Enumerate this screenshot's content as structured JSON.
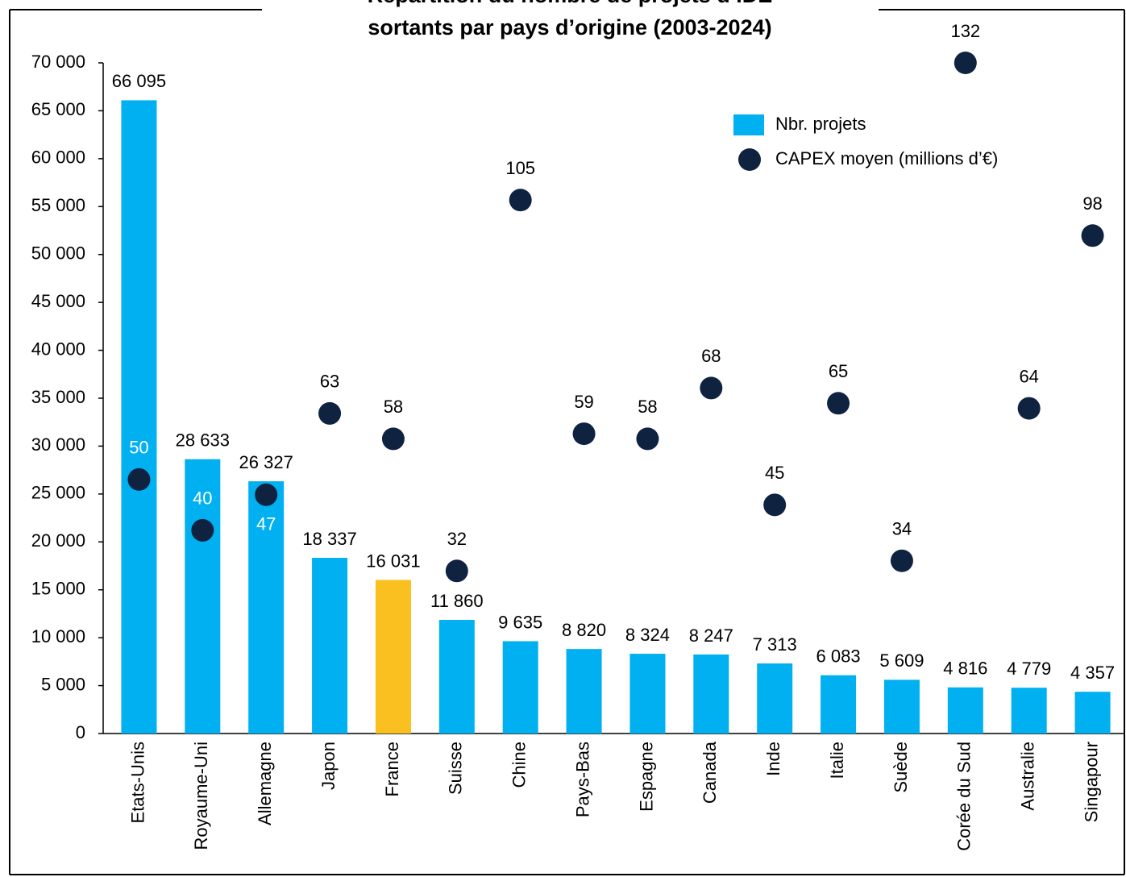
{
  "chart_data": {
    "type": "bar+scatter",
    "title": [
      "Répartition du nombre de projets d’IDE",
      "sortants par pays d’origine (2003-2024)"
    ],
    "categories": [
      "Etats-Unis",
      "Royaume-Uni",
      "Allemagne",
      "Japon",
      "France",
      "Suisse",
      "Chine",
      "Pays-Bas",
      "Espagne",
      "Canada",
      "Inde",
      "Italie",
      "Suède",
      "Corée du Sud",
      "Australie",
      "Singapour"
    ],
    "series": [
      {
        "name": "Nbr. projets",
        "type": "bar",
        "color": "#00b0f0",
        "highlight": {
          "index": 4,
          "color": "#f9c020"
        },
        "values": [
          66095,
          28633,
          26327,
          18337,
          16031,
          11860,
          9635,
          8820,
          8324,
          8247,
          7313,
          6083,
          5609,
          4816,
          4779,
          4357
        ],
        "value_labels": [
          "66 095",
          "28 633",
          "26 327",
          "18 337",
          "16 031",
          "11 860",
          "9 635",
          "8 820",
          "8 324",
          "8 247",
          "7 313",
          "6 083",
          "5 609",
          "4 816",
          "4 779",
          "4 357"
        ]
      },
      {
        "name": "CAPEX moyen (millions d’€)",
        "type": "scatter",
        "axis": "y2",
        "color": "#0f2341",
        "values": [
          50,
          40,
          47,
          63,
          58,
          32,
          105,
          59,
          58,
          68,
          45,
          65,
          34,
          132,
          64,
          98
        ]
      }
    ],
    "ylim": [
      0,
      70000
    ],
    "yticks": [
      0,
      {
        "value": 5000,
        "label": "5 000"
      },
      {
        "value": 10000,
        "label": "10 000"
      },
      {
        "value": 15000,
        "label": "15 000"
      },
      {
        "value": 20000,
        "label": "20 000"
      },
      {
        "value": 25000,
        "label": "25 000"
      },
      {
        "value": 30000,
        "label": "30 000"
      },
      {
        "value": 35000,
        "label": "35 000"
      },
      {
        "value": 40000,
        "label": "40 000"
      },
      {
        "value": 45000,
        "label": "45 000"
      },
      {
        "value": 50000,
        "label": "50 000"
      },
      {
        "value": 55000,
        "label": "55 000"
      },
      {
        "value": 60000,
        "label": "60 000"
      },
      {
        "value": 65000,
        "label": "65 000"
      },
      {
        "value": 70000,
        "label": "70 000"
      }
    ],
    "y2lim": [
      0,
      132
    ],
    "legend": "upper right",
    "grid": false
  }
}
